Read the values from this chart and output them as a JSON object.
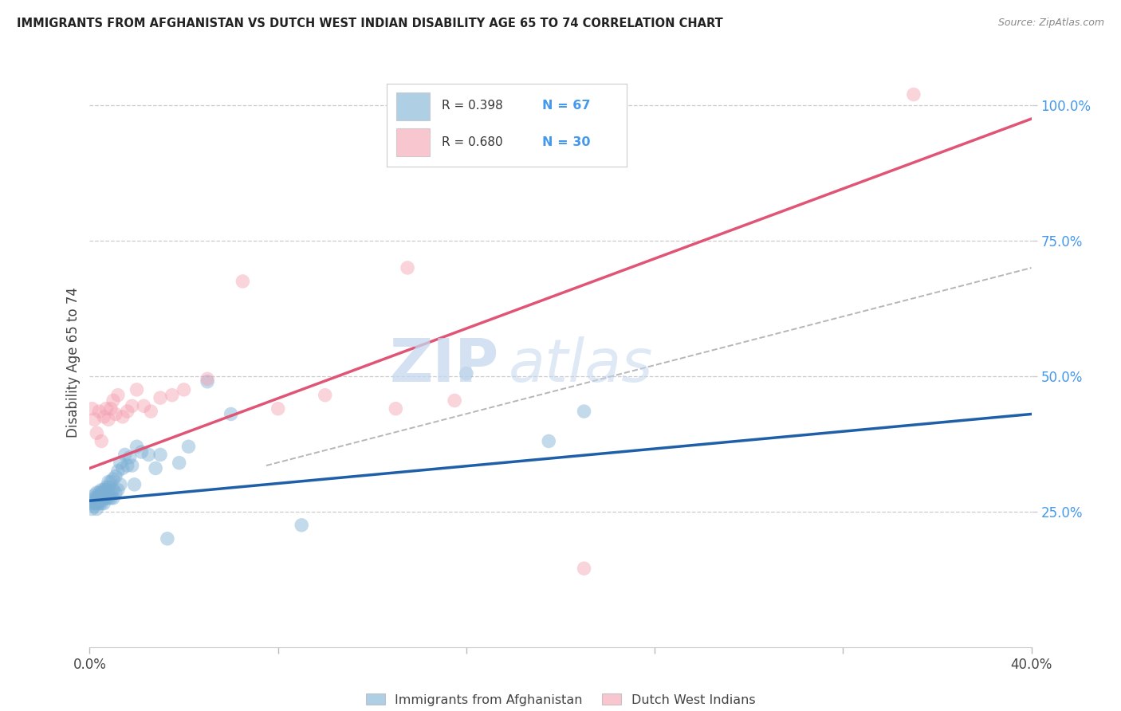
{
  "title": "IMMIGRANTS FROM AFGHANISTAN VS DUTCH WEST INDIAN DISABILITY AGE 65 TO 74 CORRELATION CHART",
  "source": "Source: ZipAtlas.com",
  "ylabel": "Disability Age 65 to 74",
  "xlim": [
    0,
    0.4
  ],
  "ylim": [
    0,
    1.05
  ],
  "yticks": [
    0.25,
    0.5,
    0.75,
    1.0
  ],
  "ytick_labels": [
    "25.0%",
    "50.0%",
    "75.0%",
    "100.0%"
  ],
  "xticks": [
    0.0,
    0.08,
    0.16,
    0.24,
    0.32,
    0.4
  ],
  "blue_color": "#7BAFD4",
  "pink_color": "#F4A0B0",
  "blue_line_color": "#1E5FA8",
  "pink_line_color": "#E05575",
  "watermark_zip": "ZIP",
  "watermark_atlas": "atlas",
  "blue_scatter_x": [
    0.001,
    0.001,
    0.001,
    0.002,
    0.002,
    0.002,
    0.002,
    0.003,
    0.003,
    0.003,
    0.003,
    0.003,
    0.004,
    0.004,
    0.004,
    0.004,
    0.004,
    0.005,
    0.005,
    0.005,
    0.005,
    0.005,
    0.005,
    0.006,
    0.006,
    0.006,
    0.006,
    0.007,
    0.007,
    0.007,
    0.007,
    0.008,
    0.008,
    0.008,
    0.008,
    0.009,
    0.009,
    0.009,
    0.01,
    0.01,
    0.01,
    0.011,
    0.011,
    0.012,
    0.012,
    0.013,
    0.013,
    0.014,
    0.015,
    0.016,
    0.017,
    0.018,
    0.019,
    0.02,
    0.022,
    0.025,
    0.028,
    0.03,
    0.033,
    0.038,
    0.042,
    0.05,
    0.06,
    0.09,
    0.16,
    0.195,
    0.21
  ],
  "blue_scatter_y": [
    0.265,
    0.255,
    0.27,
    0.28,
    0.265,
    0.275,
    0.26,
    0.275,
    0.265,
    0.285,
    0.27,
    0.255,
    0.28,
    0.27,
    0.265,
    0.285,
    0.275,
    0.28,
    0.285,
    0.27,
    0.265,
    0.275,
    0.29,
    0.285,
    0.275,
    0.29,
    0.265,
    0.29,
    0.28,
    0.295,
    0.275,
    0.305,
    0.285,
    0.295,
    0.275,
    0.305,
    0.285,
    0.275,
    0.31,
    0.29,
    0.275,
    0.315,
    0.285,
    0.325,
    0.29,
    0.34,
    0.3,
    0.33,
    0.355,
    0.335,
    0.35,
    0.335,
    0.3,
    0.37,
    0.36,
    0.355,
    0.33,
    0.355,
    0.2,
    0.34,
    0.37,
    0.49,
    0.43,
    0.225,
    0.505,
    0.38,
    0.435
  ],
  "pink_scatter_x": [
    0.001,
    0.002,
    0.003,
    0.004,
    0.005,
    0.006,
    0.007,
    0.008,
    0.009,
    0.01,
    0.011,
    0.012,
    0.014,
    0.016,
    0.018,
    0.02,
    0.023,
    0.026,
    0.03,
    0.035,
    0.04,
    0.05,
    0.065,
    0.08,
    0.1,
    0.13,
    0.155,
    0.21,
    0.135,
    0.35
  ],
  "pink_scatter_y": [
    0.44,
    0.42,
    0.395,
    0.435,
    0.38,
    0.425,
    0.44,
    0.42,
    0.44,
    0.455,
    0.43,
    0.465,
    0.425,
    0.435,
    0.445,
    0.475,
    0.445,
    0.435,
    0.46,
    0.465,
    0.475,
    0.495,
    0.675,
    0.44,
    0.465,
    0.44,
    0.455,
    0.145,
    0.7,
    1.02
  ],
  "blue_trend": [
    0.0,
    0.4,
    0.27,
    0.43
  ],
  "pink_trend": [
    0.0,
    0.4,
    0.33,
    0.975
  ],
  "ci_dash": [
    0.075,
    0.4,
    0.335,
    0.7
  ]
}
